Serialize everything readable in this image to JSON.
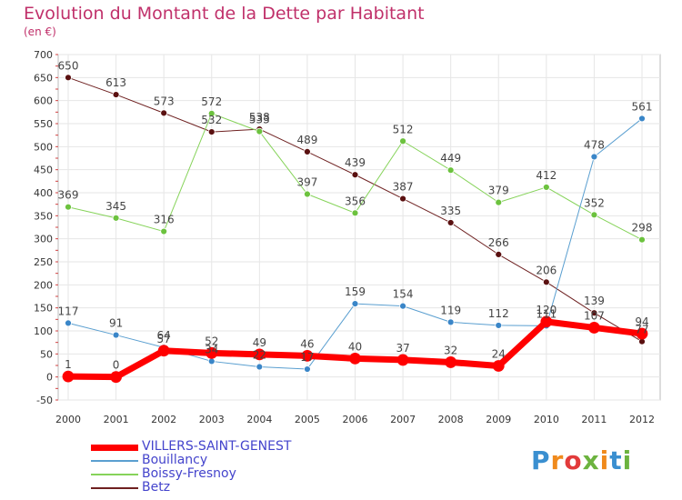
{
  "title": "Evolution du Montant de la Dette par Habitant",
  "subtitle": "(en €)",
  "logo": {
    "text": "Proxiti",
    "colors": [
      "#3a8fd0",
      "#f08a1c",
      "#e23b3b",
      "#6cb33f",
      "#f08a1c",
      "#3a8fd0",
      "#6cb33f"
    ]
  },
  "chart_data": {
    "type": "line",
    "x": [
      "2000",
      "2001",
      "2002",
      "2003",
      "2004",
      "2005",
      "2006",
      "2007",
      "2008",
      "2009",
      "2010",
      "2011",
      "2012"
    ],
    "ylim": [
      -50,
      700
    ],
    "yticks": [
      -50,
      0,
      50,
      100,
      150,
      200,
      250,
      300,
      350,
      400,
      450,
      500,
      550,
      600,
      650,
      700
    ],
    "grid": true,
    "legend": "bottom-left",
    "series": [
      {
        "name": "Betz",
        "color": "#6e2020",
        "marker": "#5a1010",
        "width": 1,
        "values": [
          650,
          613,
          573,
          532,
          538,
          489,
          439,
          387,
          335,
          266,
          206,
          139,
          77
        ]
      },
      {
        "name": "Boissy-Fresnoy",
        "color": "#86d35a",
        "marker": "#6cc23e",
        "width": 1,
        "values": [
          369,
          345,
          316,
          572,
          533,
          397,
          356,
          512,
          449,
          379,
          412,
          352,
          298
        ]
      },
      {
        "name": "Bouillancy",
        "color": "#5a9fd0",
        "marker": "#3a86c8",
        "width": 1,
        "values": [
          117,
          91,
          64,
          34,
          22,
          17,
          159,
          154,
          119,
          112,
          111,
          478,
          561
        ]
      },
      {
        "name": "VILLERS-SAINT-GENEST",
        "color": "#ff0000",
        "marker": "#ff0000",
        "width": 7,
        "values": [
          1,
          0,
          57,
          52,
          49,
          46,
          40,
          37,
          32,
          24,
          120,
          107,
          94
        ]
      }
    ],
    "data_labels": [
      {
        "series": "Betz",
        "labels": [
          "650",
          "613",
          "573",
          "532",
          "538",
          "489",
          "439",
          "387",
          "335",
          "266",
          "206",
          "139",
          "77"
        ]
      },
      {
        "series": "Boissy-Fresnoy",
        "labels": [
          "369",
          "345",
          "316",
          "572",
          "533",
          "397",
          "356",
          "512",
          "449",
          "379",
          "412",
          "352",
          "298"
        ]
      },
      {
        "series": "Bouillancy",
        "labels": [
          "117",
          "91",
          "64",
          "34",
          "22",
          "17",
          "159",
          "154",
          "119",
          "112",
          "111",
          "478",
          "561"
        ]
      },
      {
        "series": "VILLERS-SAINT-GENEST",
        "labels": [
          "1",
          "0",
          "57",
          "52",
          "49",
          "46",
          "40",
          "37",
          "32",
          "24",
          "120",
          "107",
          "94"
        ]
      }
    ],
    "legend_order": [
      "VILLERS-SAINT-GENEST",
      "Bouillancy",
      "Boissy-Fresnoy",
      "Betz"
    ]
  }
}
